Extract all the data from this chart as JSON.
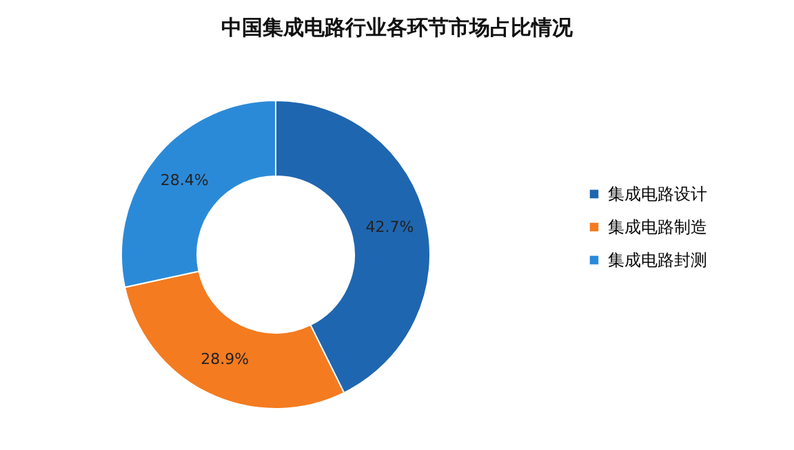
{
  "chart_data": {
    "type": "donut",
    "title": "中国集成电路行业各环节市场占比情况",
    "categories": [
      "集成电路设计",
      "集成电路制造",
      "集成电路封测"
    ],
    "values": [
      42.7,
      28.9,
      28.4
    ],
    "colors": [
      "#1f66b0",
      "#f47b20",
      "#2b8ad8"
    ],
    "value_labels": [
      "42.7%",
      "28.9%",
      "28.4%"
    ],
    "legend": "right"
  }
}
